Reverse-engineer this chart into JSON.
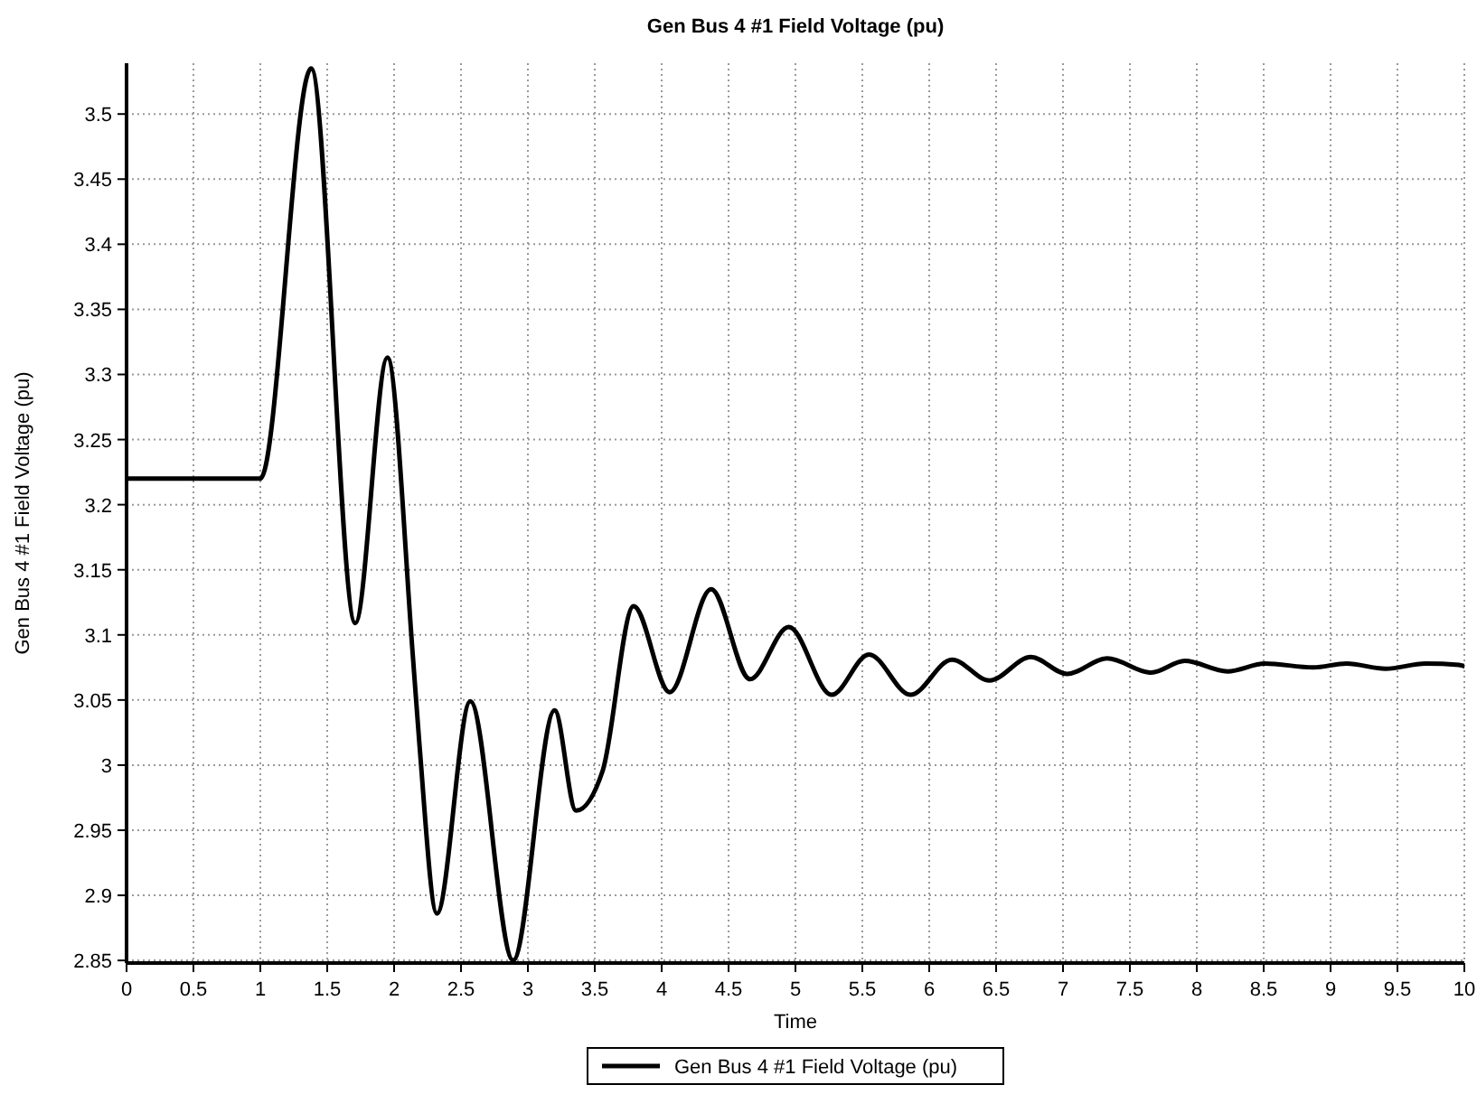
{
  "chart_data": {
    "type": "line",
    "title": "Gen Bus 4 #1 Field Voltage (pu)",
    "xlabel": "Time",
    "ylabel": "Gen Bus 4 #1 Field Voltage (pu)",
    "xlim": [
      0,
      10
    ],
    "xticks": [
      0,
      0.5,
      1,
      1.5,
      2,
      2.5,
      3,
      3.5,
      4,
      4.5,
      5,
      5.5,
      6,
      6.5,
      7,
      7.5,
      8,
      8.5,
      9,
      9.5,
      10
    ],
    "ylim": [
      2.848,
      3.539
    ],
    "yticks": [
      2.85,
      2.9,
      2.95,
      3,
      3.05,
      3.1,
      3.15,
      3.2,
      3.25,
      3.3,
      3.35,
      3.4,
      3.45,
      3.5
    ],
    "grid": true,
    "legend": "bottom",
    "marker": "none",
    "line_style": "solid",
    "series": [
      {
        "name": "Gen Bus 4 #1 Field Voltage (pu)",
        "color": "#000000",
        "x": [
          0,
          1,
          1.38,
          1.71,
          1.95,
          2.14,
          2.19,
          2.32,
          2.57,
          2.89,
          3.2,
          3.36,
          3.56,
          3.79,
          4.06,
          4.37,
          4.66,
          4.95,
          5.27,
          5.55,
          5.86,
          6.17,
          6.45,
          6.76,
          7.03,
          7.33,
          7.66,
          7.91,
          8.23,
          8.51,
          8.87,
          9.12,
          9.41,
          9.71,
          9.96,
          10
        ],
        "values": [
          3.22,
          3.22,
          3.535,
          3.109,
          3.313,
          3.084,
          3.015,
          2.886,
          3.049,
          2.85,
          3.042,
          2.965,
          2.996,
          3.122,
          3.056,
          3.135,
          3.066,
          3.106,
          3.054,
          3.085,
          3.054,
          3.081,
          3.065,
          3.083,
          3.07,
          3.082,
          3.071,
          3.08,
          3.072,
          3.078,
          3.075,
          3.078,
          3.074,
          3.078,
          3.077,
          3.076
        ]
      }
    ]
  }
}
